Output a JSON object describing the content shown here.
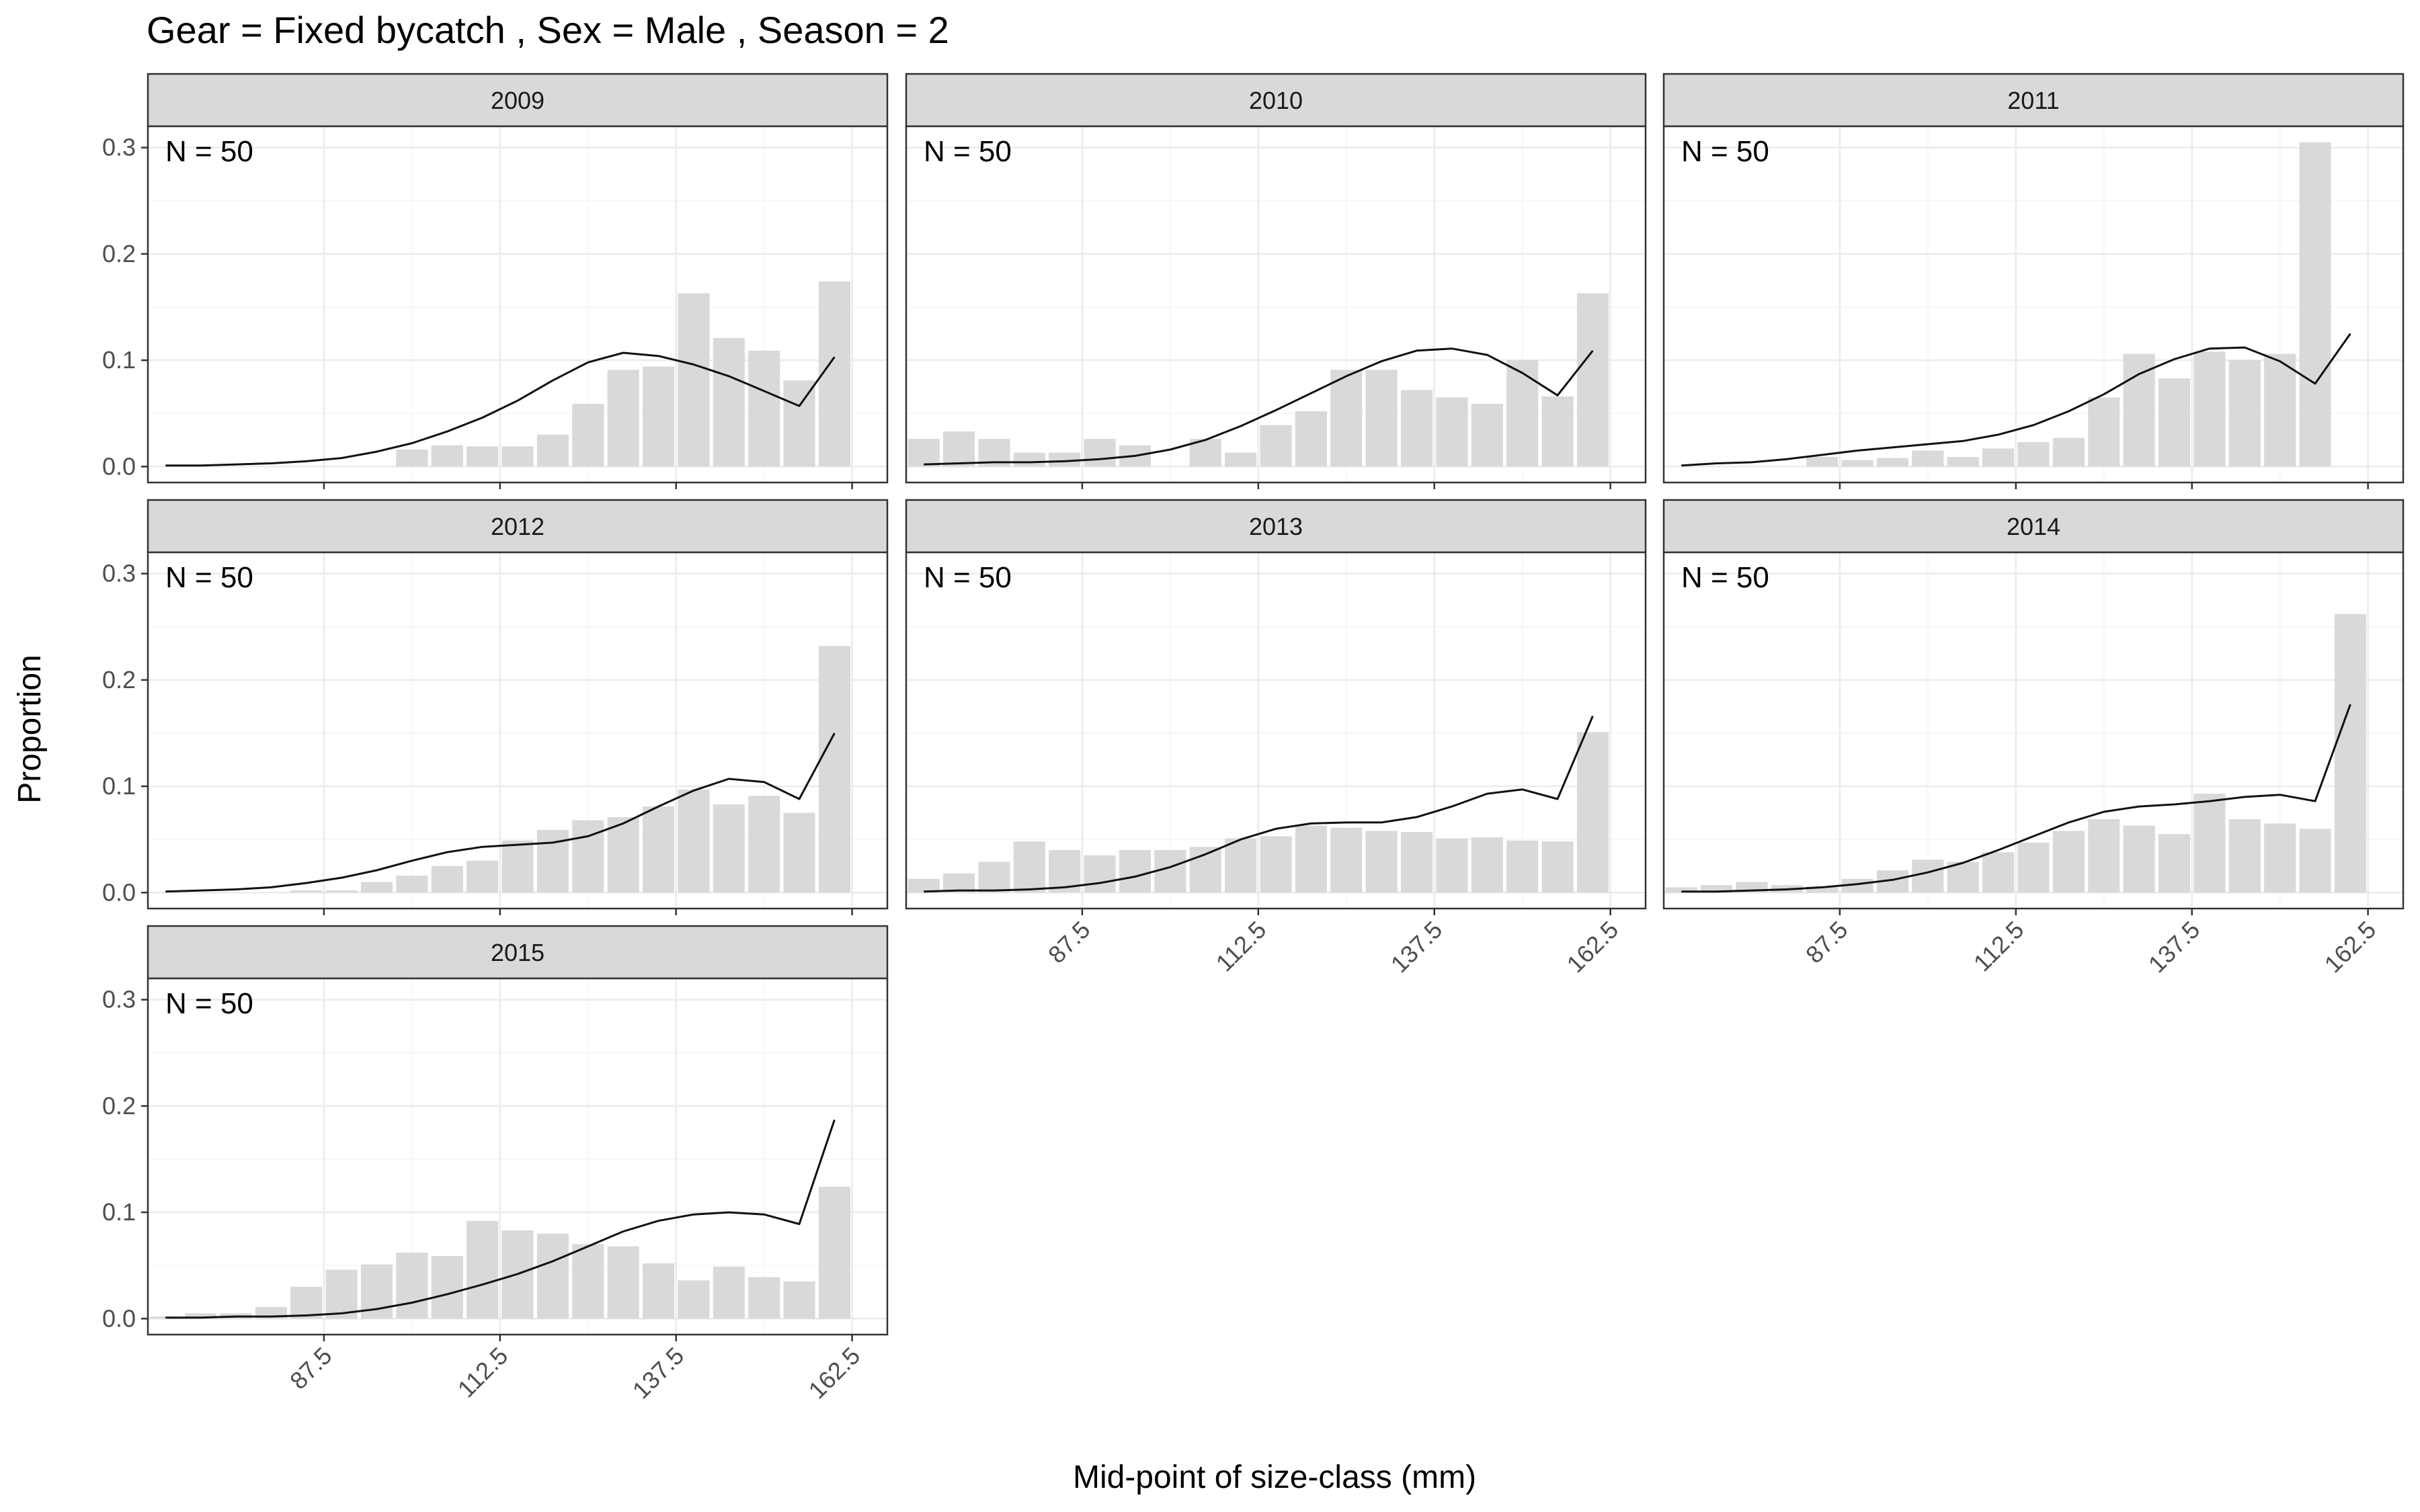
{
  "chart_data": {
    "type": "bar",
    "title": "Gear = Fixed bycatch , Sex = Male , Season = 2",
    "xlabel": "Mid-point of size-class (mm)",
    "ylabel": "Proportion",
    "ylim": [
      0,
      0.32
    ],
    "y_ticks": [
      "0.0",
      "0.1",
      "0.2",
      "0.3"
    ],
    "y_tick_values": [
      0,
      0.1,
      0.2,
      0.3
    ],
    "x_ticks": [
      "87.5",
      "112.5",
      "137.5",
      "162.5"
    ],
    "x_tick_values": [
      87.5,
      112.5,
      137.5,
      162.5
    ],
    "x_minor_grid": [
      100,
      125,
      150
    ],
    "size_classes": [
      65,
      70,
      75,
      80,
      85,
      90,
      95,
      100,
      105,
      110,
      115,
      120,
      125,
      130,
      135,
      140,
      145,
      150,
      155,
      160,
      165
    ],
    "grid_lines": true,
    "panels": [
      {
        "label": "2009",
        "n_label": "N = 50",
        "observed": [
          0,
          0,
          0,
          0,
          0,
          0,
          0,
          0.016,
          0.02,
          0.019,
          0.019,
          0.03,
          0.059,
          0.091,
          0.094,
          0.163,
          0.121,
          0.109,
          0.081,
          0.174,
          0
        ],
        "expected": [
          0.001,
          0.001,
          0.002,
          0.003,
          0.005,
          0.008,
          0.014,
          0.022,
          0.033,
          0.046,
          0.062,
          0.081,
          0.098,
          0.107,
          0.104,
          0.096,
          0.085,
          0.071,
          0.057,
          0.103,
          null
        ]
      },
      {
        "label": "2010",
        "n_label": "N = 50",
        "observed": [
          0.026,
          0.033,
          0.026,
          0.013,
          0.013,
          0.026,
          0.02,
          0,
          0.026,
          0.013,
          0.039,
          0.052,
          0.091,
          0.091,
          0.072,
          0.065,
          0.059,
          0.1,
          0.066,
          0.163,
          0
        ],
        "expected": [
          0.002,
          0.003,
          0.004,
          0.004,
          0.005,
          0.007,
          0.01,
          0.016,
          0.025,
          0.038,
          0.053,
          0.069,
          0.085,
          0.099,
          0.109,
          0.111,
          0.105,
          0.088,
          0.067,
          0.109,
          null
        ]
      },
      {
        "label": "2011",
        "n_label": "N = 50",
        "observed": [
          0,
          0,
          0,
          0,
          0.009,
          0.006,
          0.008,
          0.015,
          0.009,
          0.017,
          0.023,
          0.027,
          0.065,
          0.106,
          0.083,
          0.108,
          0.1,
          0.106,
          0.305,
          0,
          0
        ],
        "expected": [
          0.001,
          0.003,
          0.004,
          0.007,
          0.011,
          0.015,
          0.018,
          0.021,
          0.024,
          0.03,
          0.039,
          0.052,
          0.068,
          0.087,
          0.101,
          0.111,
          0.112,
          0.099,
          0.078,
          0.125,
          null
        ]
      },
      {
        "label": "2012",
        "n_label": "N = 50",
        "observed": [
          0,
          0,
          0,
          0,
          0.002,
          0.002,
          0.01,
          0.016,
          0.025,
          0.03,
          0.049,
          0.059,
          0.068,
          0.071,
          0.081,
          0.097,
          0.083,
          0.091,
          0.075,
          0.232,
          0
        ],
        "expected": [
          0.001,
          0.002,
          0.003,
          0.005,
          0.009,
          0.014,
          0.021,
          0.03,
          0.038,
          0.043,
          0.045,
          0.047,
          0.053,
          0.065,
          0.081,
          0.096,
          0.107,
          0.104,
          0.088,
          0.15,
          null
        ]
      },
      {
        "label": "2013",
        "n_label": "N = 50",
        "observed": [
          0.013,
          0.018,
          0.029,
          0.048,
          0.04,
          0.035,
          0.04,
          0.04,
          0.043,
          0.051,
          0.053,
          0.063,
          0.061,
          0.058,
          0.057,
          0.051,
          0.052,
          0.049,
          0.048,
          0.151,
          0
        ],
        "expected": [
          0.001,
          0.002,
          0.002,
          0.003,
          0.005,
          0.009,
          0.015,
          0.024,
          0.036,
          0.05,
          0.06,
          0.065,
          0.066,
          0.066,
          0.071,
          0.081,
          0.093,
          0.097,
          0.088,
          0.166,
          null
        ]
      },
      {
        "label": "2014",
        "n_label": "N = 50",
        "observed": [
          0.005,
          0.007,
          0.01,
          0.007,
          0.006,
          0.013,
          0.021,
          0.031,
          0.029,
          0.038,
          0.047,
          0.058,
          0.069,
          0.063,
          0.055,
          0.093,
          0.069,
          0.065,
          0.06,
          0.262,
          0
        ],
        "expected": [
          0.001,
          0.001,
          0.002,
          0.003,
          0.005,
          0.008,
          0.012,
          0.019,
          0.028,
          0.04,
          0.053,
          0.066,
          0.076,
          0.081,
          0.083,
          0.086,
          0.09,
          0.092,
          0.086,
          0.177,
          null
        ]
      },
      {
        "label": "2015",
        "n_label": "N = 50",
        "observed": [
          0.002,
          0.005,
          0.005,
          0.011,
          0.03,
          0.046,
          0.051,
          0.062,
          0.059,
          0.092,
          0.083,
          0.08,
          0.07,
          0.068,
          0.052,
          0.036,
          0.049,
          0.039,
          0.035,
          0.124,
          0
        ],
        "expected": [
          0.001,
          0.001,
          0.002,
          0.002,
          0.003,
          0.005,
          0.009,
          0.015,
          0.023,
          0.032,
          0.042,
          0.054,
          0.068,
          0.082,
          0.092,
          0.098,
          0.1,
          0.098,
          0.089,
          0.187,
          null
        ]
      }
    ]
  }
}
